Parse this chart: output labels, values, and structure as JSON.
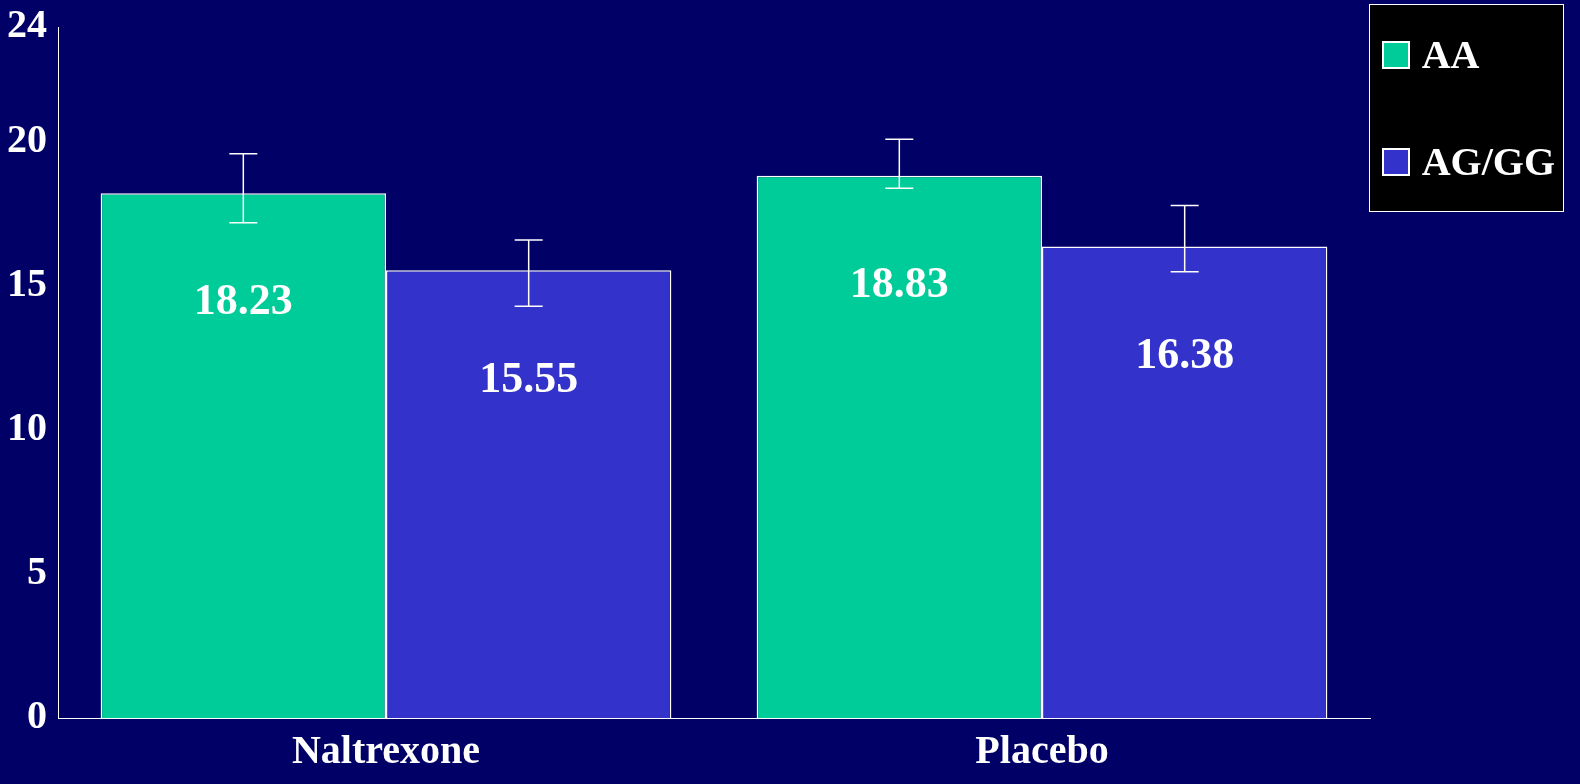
{
  "chart_data": {
    "type": "bar",
    "categories": [
      "Naltrexone",
      "Placebo"
    ],
    "series": [
      {
        "name": "AA",
        "color": "#00cc99",
        "values": [
          18.23,
          18.83
        ],
        "errors": [
          [
            17.2,
            19.6
          ],
          [
            18.4,
            20.1
          ]
        ]
      },
      {
        "name": "AG/GG",
        "color": "#3333cc",
        "values": [
          15.55,
          16.38
        ],
        "errors": [
          [
            14.3,
            16.6
          ],
          [
            15.5,
            17.8
          ]
        ]
      }
    ],
    "ylim": [
      0,
      24
    ],
    "yticks": [
      0,
      5,
      10,
      15,
      20,
      24
    ],
    "data_labels": true,
    "legend": "top right",
    "grid": false
  }
}
